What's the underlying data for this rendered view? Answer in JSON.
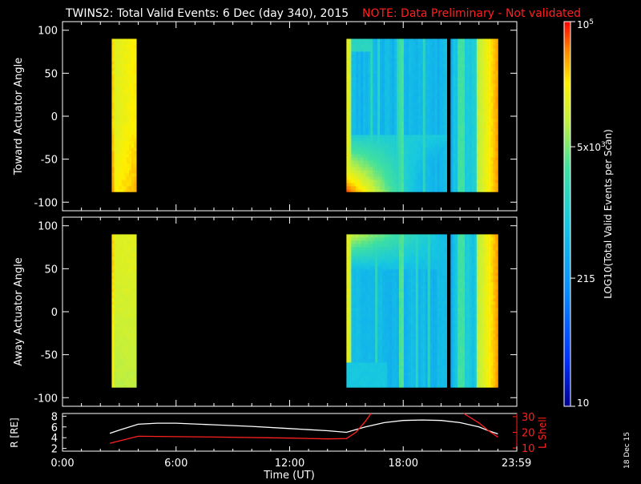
{
  "header": {
    "title": "TWINS2: Total Valid Events:  6 Dec (day 340), 2015",
    "note": "NOTE: Data Preliminary - Not validated"
  },
  "date_stamp": "18 Dec 15",
  "colors": {
    "background": "#000000",
    "axes": "#ffffff",
    "note": "#ff2020",
    "l_shell_line": "#ff2020",
    "r_line": "#ffffff"
  },
  "chart_data": [
    {
      "type": "heatmap",
      "id": "toward",
      "ylabel": "Toward Actuator Angle",
      "ylim": [
        -110,
        110
      ],
      "yticks": [
        "100",
        "50",
        "0",
        "-50",
        "-100"
      ],
      "angle_range": [
        -88,
        90
      ],
      "x_domain_hours": [
        0,
        24
      ],
      "blocks": [
        {
          "t_start": 2.6,
          "t_end": 3.9,
          "type": "early"
        },
        {
          "t_start": 15.0,
          "t_end": 20.3,
          "type": "main"
        },
        {
          "t_start": 20.5,
          "t_end": 23.0,
          "type": "late"
        }
      ],
      "color_scale": "log10 rainbow, 10 to 10^5"
    },
    {
      "type": "heatmap",
      "id": "away",
      "ylabel": "Away Actuator Angle",
      "ylim": [
        -110,
        110
      ],
      "yticks": [
        "100",
        "50",
        "0",
        "-50",
        "-100"
      ],
      "angle_range": [
        -88,
        90
      ],
      "x_domain_hours": [
        0,
        24
      ],
      "blocks": [
        {
          "t_start": 2.6,
          "t_end": 3.9,
          "type": "early"
        },
        {
          "t_start": 15.0,
          "t_end": 20.3,
          "type": "main"
        },
        {
          "t_start": 20.5,
          "t_end": 23.0,
          "type": "late"
        }
      ],
      "color_scale": "log10 rainbow, 10 to 10^5"
    },
    {
      "type": "line",
      "id": "orbit",
      "ylabel_left": "R [RE]",
      "ylabel_right": "L Shell",
      "xlabel": "Time (UT)",
      "xticks": [
        "0:00",
        "6:00",
        "12:00",
        "18:00",
        "23:59"
      ],
      "xtick_hours": [
        0,
        6,
        12,
        18,
        23.983
      ],
      "ylim_left": [
        1.5,
        8.5
      ],
      "ylim_right": [
        8,
        32
      ],
      "yticks_left": [
        "8",
        "6",
        "4",
        "2"
      ],
      "yticks_right": [
        "30",
        "20",
        "10"
      ],
      "series": [
        {
          "axis": "left",
          "x": [
            2.5,
            3.0,
            4.0,
            5.0,
            6.0,
            8.0,
            10.0,
            12.0,
            14.0,
            15.0,
            16.0,
            17.0,
            18.0,
            19.0,
            20.0,
            21.0,
            22.0,
            22.5,
            23.0
          ],
          "y": [
            4.8,
            5.4,
            6.5,
            6.7,
            6.7,
            6.4,
            6.1,
            5.7,
            5.3,
            5.0,
            6.0,
            6.8,
            7.2,
            7.3,
            7.2,
            6.8,
            6.0,
            5.3,
            4.7
          ]
        },
        {
          "axis": "right",
          "x": [
            2.5,
            3.0,
            4.0,
            8.0,
            12.0,
            14.0,
            15.0,
            15.5,
            16.0,
            16.3,
            null,
            21.2,
            22.0,
            22.5,
            23.0
          ],
          "y": [
            13,
            14.5,
            17.5,
            17,
            16.3,
            15.8,
            16,
            20,
            27,
            32,
            null,
            32,
            26,
            21,
            17
          ]
        }
      ]
    }
  ],
  "colorbar": {
    "label": "LOG10(Total Valid Events per Scan)",
    "ticks": [
      {
        "value": 100000,
        "text": "10^5"
      },
      {
        "value": 5000,
        "text": "5x10^3"
      },
      {
        "value": 215,
        "text": "215"
      },
      {
        "value": 10,
        "text": "10"
      }
    ],
    "range": [
      10,
      100000
    ]
  }
}
